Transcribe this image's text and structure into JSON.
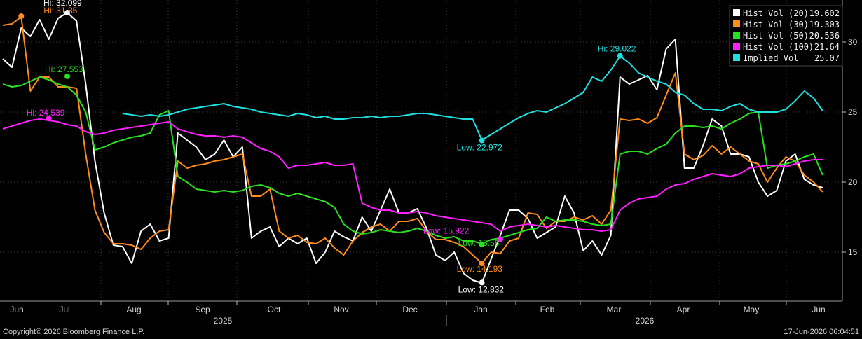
{
  "chart_data": {
    "type": "line",
    "legend_position": "top-right",
    "grid": true,
    "ylim": [
      11.5,
      33
    ],
    "y_ticks": [
      15,
      20,
      25,
      30
    ],
    "x_tick_labels": [
      "Jun",
      "Jul",
      "Aug",
      "Sep",
      "Oct",
      "Nov",
      "Dec",
      "Jan",
      "Feb",
      "Mar",
      "Apr",
      "May",
      "Jun"
    ],
    "year_labels": [
      "2025",
      "2026"
    ],
    "series": [
      {
        "name": "Hist Vol (20)",
        "last": "19.602",
        "color": "#ffffff",
        "values": [
          28.8,
          28.2,
          31.0,
          30.4,
          31.6,
          30.2,
          31.7,
          32.1,
          31.5,
          27.0,
          21.5,
          17.8,
          15.5,
          15.4,
          14.2,
          16.5,
          17.0,
          15.8,
          16.0,
          23.5,
          23.0,
          22.5,
          21.6,
          22.0,
          23.0,
          21.8,
          22.5,
          16.0,
          16.5,
          16.8,
          15.4,
          16.0,
          15.6,
          16.0,
          14.2,
          15.0,
          16.5,
          16.1,
          15.8,
          17.5,
          16.5,
          18.0,
          19.5,
          17.8,
          17.8,
          18.1,
          16.7,
          14.8,
          14.4,
          15.0,
          13.5,
          13.0,
          12.8,
          14.5,
          16.2,
          18.0,
          18.0,
          17.4,
          16.0,
          16.4,
          16.8,
          19.0,
          17.8,
          15.1,
          15.8,
          14.8,
          16.2,
          27.5,
          27.0,
          27.3,
          27.6,
          26.6,
          29.5,
          30.2,
          21.0,
          21.0,
          22.6,
          24.5,
          24.0,
          22.0,
          22.0,
          21.8,
          20.0,
          19.0,
          19.4,
          21.5,
          22.0,
          20.2,
          19.8,
          19.6
        ]
      },
      {
        "name": "Hist Vol (30)",
        "last": "19.303",
        "color": "#ff8c1a",
        "values": [
          31.2,
          31.3,
          31.8,
          26.5,
          27.5,
          27.5,
          26.8,
          26.8,
          26.7,
          22.0,
          18.0,
          16.4,
          15.6,
          15.6,
          15.5,
          15.2,
          16.0,
          16.5,
          16.6,
          21.5,
          21.0,
          21.2,
          21.3,
          21.5,
          21.6,
          21.8,
          22.0,
          19.0,
          19.0,
          19.5,
          16.5,
          16.0,
          16.2,
          15.7,
          15.6,
          16.0,
          15.3,
          14.8,
          15.8,
          16.4,
          16.8,
          17.0,
          16.5,
          17.2,
          17.2,
          17.4,
          16.5,
          15.9,
          15.9,
          15.7,
          15.4,
          14.8,
          14.2,
          15.0,
          14.9,
          15.8,
          16.0,
          17.8,
          17.7,
          16.7,
          17.2,
          17.2,
          17.5,
          17.3,
          17.6,
          17.0,
          18.0,
          24.5,
          24.4,
          24.5,
          24.2,
          24.6,
          26.2,
          27.8,
          22.0,
          21.6,
          21.9,
          22.6,
          22.0,
          22.5,
          22.0,
          21.5,
          21.3,
          20.0,
          21.0,
          21.8,
          21.5,
          20.5,
          20.0,
          19.3
        ]
      },
      {
        "name": "Hist Vol (50)",
        "last": "20.536",
        "color": "#29e01f",
        "values": [
          27.0,
          26.8,
          26.9,
          27.2,
          27.5,
          27.3,
          27.0,
          26.8,
          26.2,
          25.0,
          22.3,
          22.5,
          22.8,
          23.0,
          23.2,
          23.3,
          23.5,
          24.8,
          25.1,
          20.4,
          20.0,
          19.5,
          19.4,
          19.3,
          19.4,
          19.3,
          19.4,
          19.7,
          19.8,
          19.6,
          19.2,
          19.0,
          19.2,
          19.0,
          18.8,
          18.6,
          18.2,
          17.0,
          16.5,
          16.3,
          16.4,
          16.6,
          16.5,
          16.4,
          16.5,
          16.7,
          16.5,
          16.2,
          16.0,
          16.1,
          15.8,
          15.8,
          15.6,
          15.9,
          16.0,
          16.2,
          16.4,
          16.6,
          16.7,
          17.5,
          17.2,
          17.3,
          17.3,
          17.2,
          17.0,
          16.9,
          17.0,
          22.0,
          22.2,
          22.2,
          22.0,
          22.4,
          22.7,
          23.5,
          24.0,
          24.0,
          23.9,
          24.0,
          23.8,
          24.2,
          24.5,
          24.9,
          25.0,
          21.0,
          21.2,
          21.3,
          21.5,
          21.8,
          22.0,
          20.5
        ]
      },
      {
        "name": "Hist Vol (100)",
        "last": "21.64",
        "color": "#ff1fff",
        "values": [
          23.8,
          24.0,
          24.2,
          24.4,
          24.5,
          24.4,
          24.3,
          24.1,
          24.0,
          23.6,
          23.4,
          23.5,
          23.7,
          23.8,
          23.9,
          24.0,
          24.1,
          24.2,
          24.3,
          23.8,
          23.6,
          23.4,
          23.3,
          23.3,
          23.2,
          23.3,
          23.2,
          22.8,
          22.4,
          22.2,
          21.8,
          21.0,
          21.2,
          21.2,
          21.3,
          21.4,
          21.2,
          21.2,
          21.3,
          18.5,
          18.2,
          18.0,
          18.0,
          17.8,
          17.8,
          17.9,
          17.8,
          17.6,
          17.5,
          17.4,
          17.3,
          17.2,
          17.1,
          17.0,
          16.5,
          16.8,
          16.9,
          17.0,
          16.9,
          16.8,
          16.9,
          16.8,
          16.7,
          16.6,
          16.6,
          16.5,
          16.6,
          18.0,
          18.5,
          18.8,
          18.9,
          19.0,
          19.5,
          19.8,
          19.9,
          20.2,
          20.4,
          20.6,
          20.5,
          20.4,
          20.6,
          21.0,
          21.1,
          21.2,
          21.2,
          21.1,
          21.3,
          21.5,
          21.6,
          21.6
        ]
      },
      {
        "name": "Implied Vol",
        "last": "25.07",
        "color": "#1fe0e0",
        "values": [
          null,
          null,
          null,
          null,
          null,
          null,
          null,
          null,
          null,
          null,
          null,
          null,
          null,
          24.9,
          24.8,
          24.7,
          24.8,
          24.7,
          24.8,
          25.0,
          25.2,
          25.3,
          25.4,
          25.5,
          25.6,
          25.4,
          25.3,
          25.2,
          25.0,
          24.9,
          24.8,
          24.7,
          24.9,
          24.8,
          24.6,
          24.7,
          24.5,
          24.5,
          24.6,
          24.6,
          24.7,
          24.6,
          24.7,
          24.7,
          24.8,
          24.9,
          24.9,
          24.8,
          24.7,
          24.6,
          24.5,
          24.5,
          23.0,
          23.4,
          23.8,
          24.2,
          24.6,
          24.9,
          25.1,
          25.0,
          25.3,
          25.6,
          26.0,
          26.4,
          27.5,
          27.2,
          28.0,
          29.0,
          28.5,
          27.8,
          27.5,
          27.2,
          27.0,
          26.4,
          26.2,
          25.6,
          25.2,
          25.2,
          25.1,
          25.4,
          25.6,
          25.2,
          25.0,
          25.0,
          25.0,
          25.2,
          25.8,
          26.5,
          26.0,
          25.1
        ]
      }
    ],
    "annotations": [
      {
        "text": "Hi: 32.099",
        "value": 32.099,
        "series": 0,
        "idx": 7
      },
      {
        "text": "Hi: 31.85",
        "value": 31.85,
        "series": 1,
        "idx": 2
      },
      {
        "text": "Hi: 27.553",
        "value": 27.553,
        "series": 2,
        "idx": 7
      },
      {
        "text": "Hi: 24.539",
        "value": 24.539,
        "series": 3,
        "idx": 5
      },
      {
        "text": "Hi: 29.022",
        "value": 29.022,
        "series": 4,
        "idx": 67
      },
      {
        "text": "Low: 22.972",
        "value": 22.972,
        "series": 4,
        "idx": 52
      },
      {
        "text": "Low: 15.922",
        "value": 15.922,
        "series": 3,
        "idx": 54
      },
      {
        "text": "Low: 15.56",
        "value": 15.56,
        "series": 2,
        "idx": 52
      },
      {
        "text": "Low: 14.193",
        "value": 14.193,
        "series": 1,
        "idx": 52
      },
      {
        "text": "Low: 12.832",
        "value": 12.832,
        "series": 0,
        "idx": 52
      }
    ]
  },
  "footer": {
    "copyright": "Copyright© 2026 Bloomberg Finance L.P.",
    "timestamp": "17-Jun-2026 06:04:51"
  }
}
